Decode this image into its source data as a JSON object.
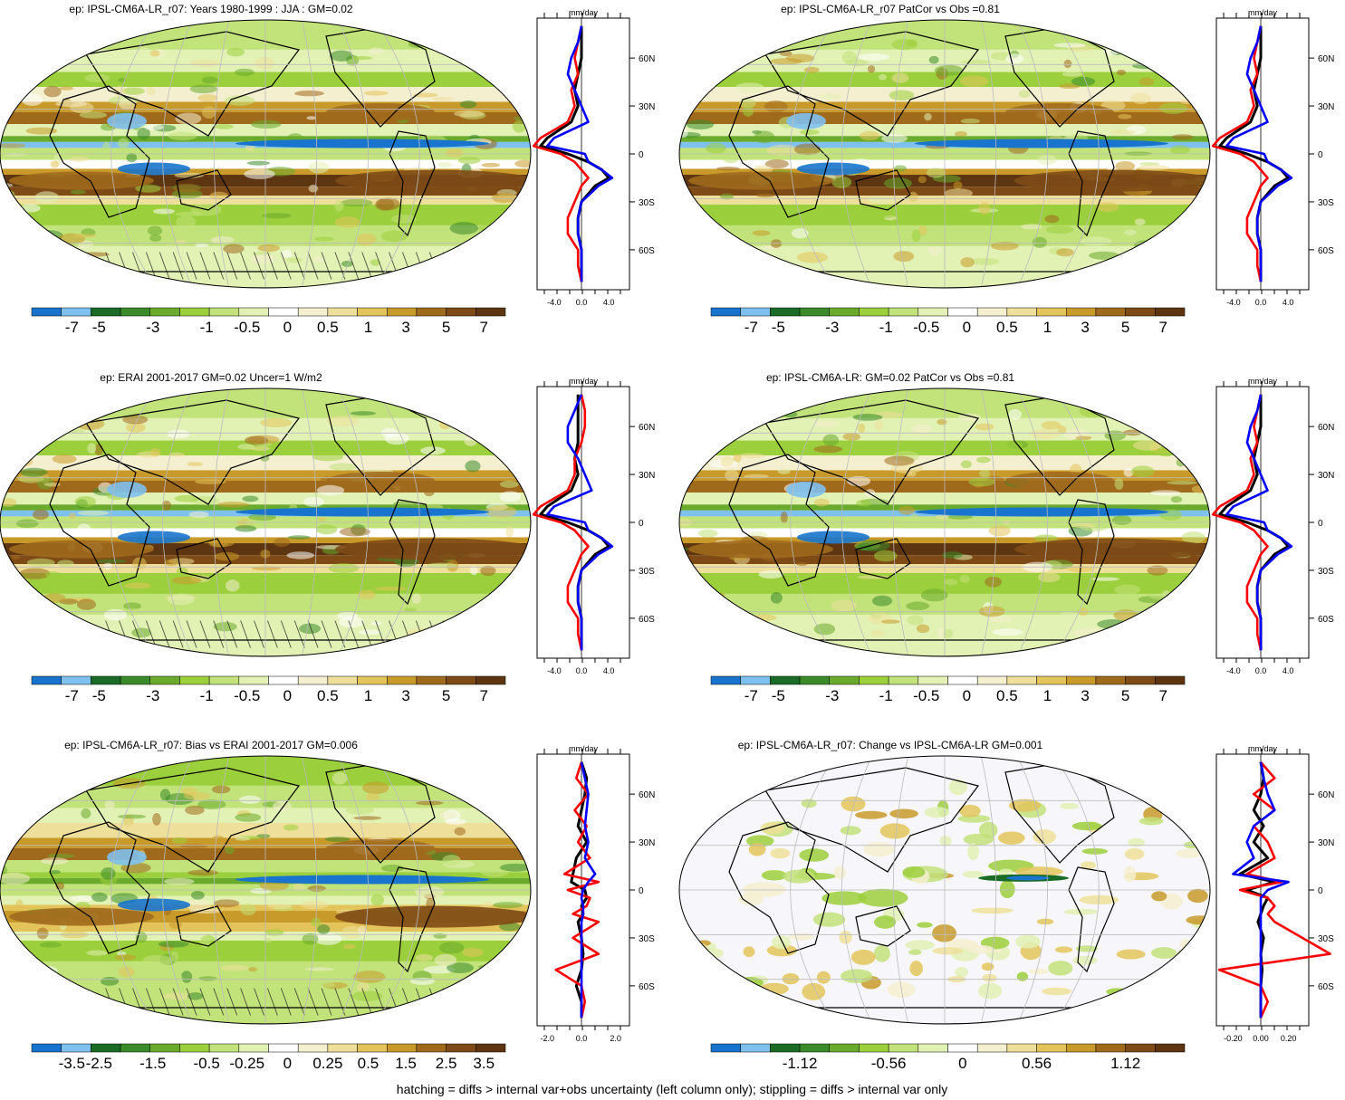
{
  "palette": [
    "#1874cd",
    "#7ec0ee",
    "#1a6b25",
    "#3b8b2a",
    "#6aaa2c",
    "#9ccf3c",
    "#c2e27a",
    "#e2f1b4",
    "#ffffff",
    "#f4efcf",
    "#eee09a",
    "#e3c45a",
    "#c89a2a",
    "#a06a1d",
    "#7e4b16",
    "#5e3511"
  ],
  "footer": "hatching = diffs > internal var+obs uncertainty (left column only); stippling = diffs > internal var only",
  "panels": [
    {
      "id": "p1",
      "title": "ep: IPSL-CM6A-LR_r07: Years 1980-1999 : JJA : GM=0.02",
      "colorbar": [
        "-7",
        "-5",
        "-3",
        "-1",
        "-0.5",
        "0",
        "0.5",
        "1",
        "3",
        "5",
        "7"
      ],
      "zonal_unit": "mm/day",
      "zonal_xticks": [
        "-4.0",
        "0.0",
        "4.0"
      ]
    },
    {
      "id": "p2",
      "title": "ep: IPSL-CM6A-LR_r07 PatCor vs Obs =0.81",
      "colorbar": [
        "-7",
        "-5",
        "-3",
        "-1",
        "-0.5",
        "0",
        "0.5",
        "1",
        "3",
        "5",
        "7"
      ],
      "zonal_unit": "mm/day",
      "zonal_xticks": [
        "-4.0",
        "0.0",
        "4.0"
      ]
    },
    {
      "id": "p3",
      "title": "ep: ERAI 2001-2017 GM=0.02 Uncer=1 W/m2",
      "colorbar": [
        "-7",
        "-5",
        "-3",
        "-1",
        "-0.5",
        "0",
        "0.5",
        "1",
        "3",
        "5",
        "7"
      ],
      "zonal_unit": "mm/day",
      "zonal_xticks": [
        "-4.0",
        "0.0",
        "4.0"
      ]
    },
    {
      "id": "p4",
      "title": "ep: IPSL-CM6A-LR: GM=0.02 PatCor vs Obs =0.81",
      "colorbar": [
        "-7",
        "-5",
        "-3",
        "-1",
        "-0.5",
        "0",
        "0.5",
        "1",
        "3",
        "5",
        "7"
      ],
      "zonal_unit": "mm/day",
      "zonal_xticks": [
        "-4.0",
        "0.0",
        "4.0"
      ]
    },
    {
      "id": "p5",
      "title": "ep: IPSL-CM6A-LR_r07: Bias vs ERAI 2001-2017 GM=0.006",
      "colorbar": [
        "-3.5",
        "-2.5",
        "-1.5",
        "-0.5",
        "-0.25",
        "0",
        "0.25",
        "0.5",
        "1.5",
        "2.5",
        "3.5"
      ],
      "zonal_unit": "mm/day",
      "zonal_xticks": [
        "-2.0",
        "0.0",
        "2.0"
      ]
    },
    {
      "id": "p6",
      "title": "ep: IPSL-CM6A-LR_r07: Change vs IPSL-CM6A-LR GM=0.001",
      "colorbar": [
        "-1.12",
        "-0.56",
        "0",
        "0.56",
        "1.12"
      ],
      "zonal_unit": "mm/day",
      "zonal_xticks": [
        "-0.20",
        "0.00",
        "0.20"
      ]
    }
  ],
  "chart_data": {
    "type": "heatmap",
    "lat_ticks": [
      "60N",
      "30N",
      "0",
      "30S",
      "60S"
    ],
    "lat_values": [
      60,
      30,
      0,
      -30,
      -60
    ],
    "zonal_lat": [
      80,
      70,
      60,
      50,
      40,
      30,
      20,
      10,
      5,
      0,
      -5,
      -10,
      -15,
      -20,
      -30,
      -40,
      -50,
      -60,
      -70,
      -80
    ],
    "zonal_series": [
      {
        "color": "#000000",
        "panels": {
          "p1": [
            0,
            0,
            0,
            -0.5,
            -1,
            -0.5,
            -1.5,
            -5,
            -6,
            -2,
            1,
            3,
            4,
            2,
            0,
            -0.5,
            -0.5,
            0,
            0,
            0
          ],
          "p2": [
            0,
            0,
            0,
            -0.5,
            -1,
            -0.5,
            -1.5,
            -5,
            -6,
            -2,
            1,
            3,
            4,
            2,
            0,
            -0.5,
            -0.5,
            0,
            0,
            0
          ],
          "p3": [
            -0.5,
            -0.5,
            -0.5,
            -0.5,
            -1,
            -0.5,
            -1.5,
            -5,
            -6,
            -2,
            1,
            3,
            4,
            2,
            0,
            -0.5,
            -0.5,
            0,
            0,
            0
          ],
          "p4": [
            0,
            0,
            0,
            -0.5,
            -1,
            -0.5,
            -1.5,
            -5,
            -6,
            -2,
            1,
            3,
            4,
            2,
            0,
            -0.5,
            -0.5,
            0,
            0,
            0
          ],
          "p5": [
            0,
            0.3,
            0.2,
            0,
            -0.2,
            0.3,
            -0.3,
            -0.5,
            -0.6,
            0.2,
            0.3,
            0,
            0.1,
            -0.2,
            0,
            0.1,
            0,
            -0.3,
            0,
            0
          ],
          "p6": [
            0,
            0.02,
            0,
            -0.05,
            0.02,
            -0.05,
            0.05,
            -0.15,
            0.1,
            -0.1,
            0.05,
            0.02,
            0,
            -0.02,
            0.02,
            0,
            0.01,
            0,
            0,
            0
          ]
        }
      },
      {
        "color": "#ff0000",
        "panels": {
          "p1": [
            0,
            -0.5,
            -1,
            -0.5,
            -1.5,
            -1,
            -2,
            -6,
            -7,
            -3,
            -1,
            0,
            1,
            0,
            -1,
            -2,
            -2,
            -0.5,
            -0.5,
            0
          ],
          "p2": [
            0,
            -0.5,
            -1,
            -0.5,
            -1.5,
            -1,
            -2,
            -6,
            -7,
            -3,
            -1,
            0,
            1,
            0,
            -1,
            -2,
            -2,
            -0.5,
            -0.5,
            0
          ],
          "p3": [
            0,
            0.5,
            0.5,
            0,
            -1,
            -1,
            -2,
            -6,
            -7,
            -3,
            -1,
            0,
            1,
            0,
            -1,
            -2,
            -2,
            -0.5,
            -0.5,
            0
          ],
          "p4": [
            0,
            -0.5,
            -1,
            -0.5,
            -1.5,
            -1,
            -2,
            -6,
            -7,
            -3,
            -1,
            0,
            1,
            0,
            -1,
            -2,
            -2,
            -0.5,
            -0.5,
            0
          ],
          "p5": [
            0,
            -0.3,
            0.4,
            -0.4,
            0.3,
            -0.2,
            0.5,
            -1,
            1,
            -0.8,
            0.5,
            0.3,
            -0.5,
            1,
            -0.5,
            1,
            -1.5,
            0,
            0.2,
            0
          ],
          "p6": [
            0,
            0.1,
            -0.05,
            0.1,
            -0.05,
            0.05,
            0.1,
            -0.1,
            0.15,
            -0.15,
            0.05,
            0.1,
            0.05,
            0.1,
            0.3,
            0.5,
            -0.3,
            0,
            0.05,
            0
          ]
        }
      },
      {
        "color": "#0000ff",
        "panels": {
          "p1": [
            0,
            -0.5,
            -1.5,
            -2,
            -1,
            0,
            1,
            -4,
            -5,
            0.5,
            1,
            3,
            4.5,
            2.5,
            0,
            -0.5,
            -0.5,
            0,
            0,
            0
          ],
          "p2": [
            0,
            -0.5,
            -1.5,
            -2,
            -1,
            0,
            1,
            -4,
            -5,
            0.5,
            1,
            3,
            4.5,
            2.5,
            0,
            -0.5,
            -0.5,
            0,
            0,
            0
          ],
          "p3": [
            0,
            -1,
            -2,
            -2,
            -0.5,
            0.5,
            1.5,
            -4,
            -5,
            0.5,
            1,
            3,
            4.5,
            2.5,
            0,
            -0.5,
            -0.5,
            0,
            0,
            0
          ],
          "p4": [
            0,
            -0.5,
            -1.5,
            -2,
            -1,
            0,
            1,
            -4,
            -5,
            0.5,
            1,
            3,
            4.5,
            2.5,
            0,
            -0.5,
            -0.5,
            0,
            0,
            0
          ],
          "p5": [
            0,
            0.2,
            0.4,
            0.3,
            0.2,
            0.4,
            0.2,
            0.8,
            0.4,
            0.1,
            0,
            0.1,
            0.1,
            0,
            0,
            0,
            0,
            0,
            0,
            0
          ],
          "p6": [
            0,
            0.02,
            0.05,
            0.1,
            -0.05,
            -0.1,
            -0.05,
            -0.2,
            0.2,
            0.05,
            0,
            0,
            0,
            0,
            0,
            0,
            0,
            0,
            0,
            0
          ]
        }
      }
    ]
  }
}
